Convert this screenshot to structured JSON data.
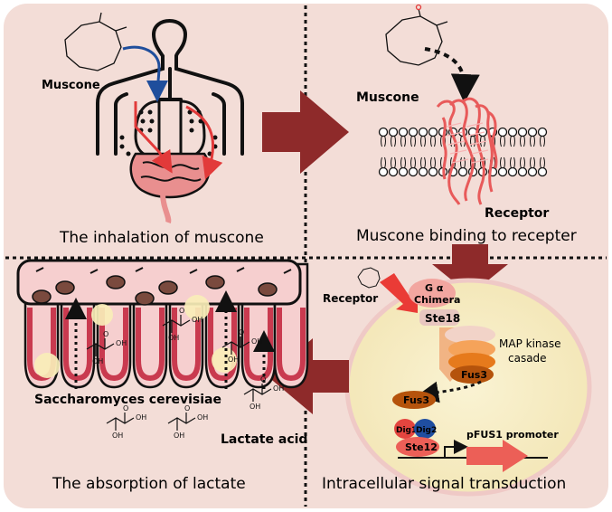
{
  "panels": {
    "top_left": {
      "caption": "The inhalation of muscone",
      "muscone_label": "Muscone"
    },
    "top_right": {
      "caption": "Muscone binding to recepter",
      "muscone_label": "Muscone",
      "receptor_label": "Receptor"
    },
    "bottom_right": {
      "caption": "Intracellular signal transduction",
      "receptor_label": "Receptor",
      "g_alpha_label": "G α",
      "chimera_label": "Chimera",
      "ste18_label": "Ste18",
      "map_kinase_label": "MAP kinase",
      "cascade_label": "casade",
      "fus3_label": "Fus3",
      "fus3_nuclear_label": "Fus3",
      "dig1_label": "Dig1",
      "dig2_label": "Dig2",
      "ste12_label": "Ste12",
      "promoter_label": "pFUS1 promoter"
    },
    "bottom_left": {
      "caption": "The absorption of lactate",
      "yeast_label": "Saccharomyces cerevisiae",
      "lactate_label": "Lactate acid",
      "oh_label": "OH",
      "o_label": "O"
    }
  },
  "colors": {
    "background": "#f3ddd7",
    "dark_red_arrow": "#8e2a2a",
    "blue_arrow": "#1f4e9c",
    "red_arrow": "#e23a3a",
    "cell_fill": "#f7eec4",
    "cell_border": "#efc9c6",
    "villus_fill": "#f6cfcf",
    "villus_edge": "#c93a4f",
    "nucleus": "#7a4a3e",
    "yeast": "#f8eeb8",
    "chimera": "#f2a6a0",
    "ste18": "#e8c6c0",
    "kinase1": "#f2d3c8",
    "kinase2": "#f5a35a",
    "kinase3": "#e67a1c",
    "fus3": "#b5530c",
    "dig1": "#e4453f",
    "dig2": "#1f4ea0",
    "ste12": "#ec5f57",
    "receptor_protein": "#e85a5a"
  },
  "icons": [
    "muscone-molecule-icon",
    "human-body-icon",
    "lipid-bilayer-icon",
    "receptor-protein-icon",
    "lactate-molecule-icon",
    "yeast-cell-icon"
  ]
}
